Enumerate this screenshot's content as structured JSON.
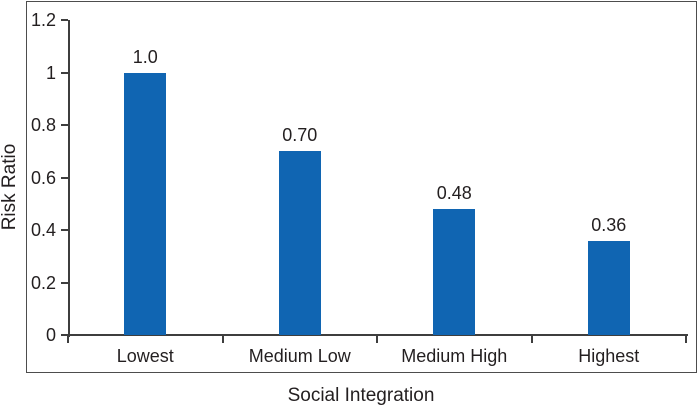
{
  "chart_data": {
    "type": "bar",
    "title": "",
    "categories": [
      "Lowest",
      "Medium Low",
      "Medium High",
      "Highest"
    ],
    "values": [
      1.0,
      0.7,
      0.48,
      0.36
    ],
    "value_labels": [
      "1.0",
      "0.70",
      "0.48",
      "0.36"
    ],
    "xlabel": "Social Integration",
    "ylabel": "Risk Ratio",
    "ylim": [
      0,
      1.2
    ],
    "ytick_interval": 0.2,
    "ytick_labels": [
      "1.2",
      "1",
      "0.8",
      "0.6",
      "0.4",
      "0.2",
      "0"
    ],
    "grid": false,
    "legend": false,
    "bar_color": "#1065b2",
    "axis_color": "#3e3e3e",
    "frame_color": "#4d4d4d",
    "text_color": "#231f20"
  }
}
